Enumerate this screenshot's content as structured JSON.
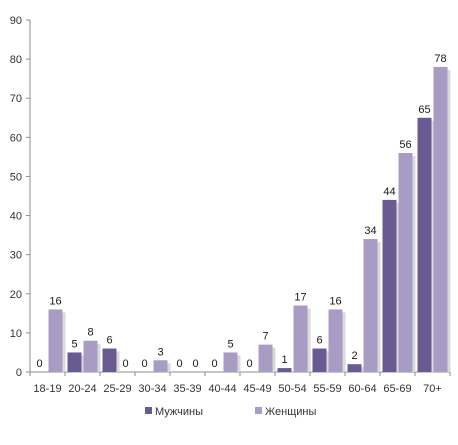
{
  "chart_data": {
    "type": "bar",
    "title": "",
    "xlabel": "",
    "ylabel": "",
    "ylim": [
      0,
      90
    ],
    "yticks": [
      0,
      10,
      20,
      30,
      40,
      50,
      60,
      70,
      80,
      90
    ],
    "grid": false,
    "legend_position": "bottom",
    "categories": [
      "18-19",
      "20-24",
      "25-29",
      "30-34",
      "35-39",
      "40-44",
      "45-49",
      "50-54",
      "55-59",
      "60-64",
      "65-69",
      "70+"
    ],
    "series": [
      {
        "name": "Мужчины",
        "color": "#6a5a92",
        "values": [
          0,
          5,
          6,
          0,
          0,
          0,
          0,
          1,
          6,
          2,
          44,
          65
        ]
      },
      {
        "name": "Женщины",
        "color": "#a99cc4",
        "values": [
          16,
          8,
          0,
          3,
          0,
          5,
          7,
          17,
          16,
          34,
          56,
          78
        ]
      }
    ]
  }
}
